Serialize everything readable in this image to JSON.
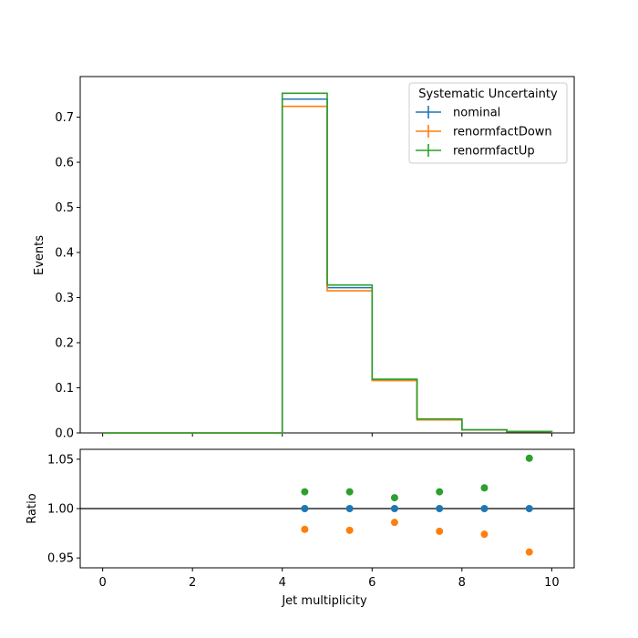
{
  "chart_data": [
    {
      "type": "step",
      "panel": "main",
      "xlabel": "",
      "ylabel": "Events",
      "xlim": [
        -0.5,
        10.5
      ],
      "ylim": [
        0,
        0.79
      ],
      "xticks": [
        0,
        2,
        4,
        6,
        8,
        10
      ],
      "yticks": [
        0.0,
        0.1,
        0.2,
        0.3,
        0.4,
        0.5,
        0.6,
        0.7
      ],
      "ytick_labels": [
        "0.0",
        "0.1",
        "0.2",
        "0.3",
        "0.4",
        "0.5",
        "0.6",
        "0.7"
      ],
      "bin_edges": [
        0,
        1,
        2,
        3,
        4,
        5,
        6,
        7,
        8,
        9,
        10
      ],
      "legend": {
        "title": "Systematic Uncertainty",
        "placement": "top-right"
      },
      "series": [
        {
          "name": "nominal",
          "color": "#1f77b4",
          "values": [
            0,
            0,
            0,
            0,
            0.74,
            0.322,
            0.118,
            0.03,
            0.0068,
            0.003
          ]
        },
        {
          "name": "renormfactDown",
          "color": "#ff7f0e",
          "values": [
            0,
            0,
            0,
            0,
            0.724,
            0.315,
            0.116,
            0.029,
            0.0066,
            0.0029
          ]
        },
        {
          "name": "renormfactUp",
          "color": "#2ca02c",
          "values": [
            0,
            0,
            0,
            0,
            0.753,
            0.328,
            0.119,
            0.031,
            0.0069,
            0.0032
          ]
        }
      ]
    },
    {
      "type": "scatter",
      "panel": "ratio",
      "xlabel": "Jet multiplicity",
      "ylabel": "Ratio",
      "xlim": [
        -0.5,
        10.5
      ],
      "ylim": [
        0.94,
        1.06
      ],
      "xticks": [
        0,
        2,
        4,
        6,
        8,
        10
      ],
      "xtick_labels": [
        "0",
        "2",
        "4",
        "6",
        "8",
        "10"
      ],
      "yticks": [
        0.95,
        1.0,
        1.05
      ],
      "ytick_labels": [
        "0.95",
        "1.00",
        "1.05"
      ],
      "reference_line": 1.0,
      "x": [
        4.5,
        5.5,
        6.5,
        7.5,
        8.5,
        9.5
      ],
      "series": [
        {
          "name": "nominal",
          "color": "#1f77b4",
          "values": [
            1.0,
            1.0,
            1.0,
            1.0,
            1.0,
            1.0
          ]
        },
        {
          "name": "renormfactDown",
          "color": "#ff7f0e",
          "values": [
            0.979,
            0.978,
            0.986,
            0.977,
            0.974,
            0.956
          ]
        },
        {
          "name": "renormfactUp",
          "color": "#2ca02c",
          "values": [
            1.017,
            1.017,
            1.011,
            1.017,
            1.021,
            1.051
          ]
        }
      ]
    }
  ]
}
